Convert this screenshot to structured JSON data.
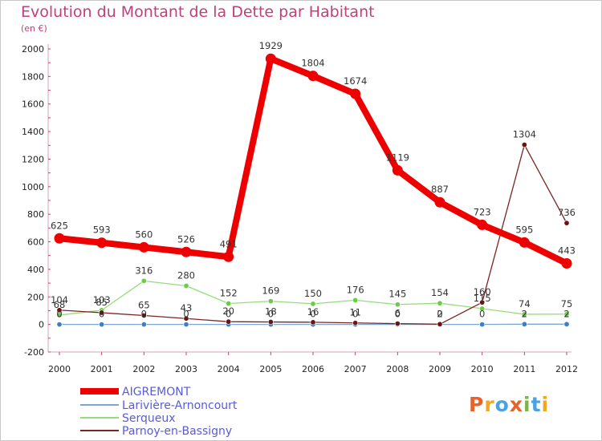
{
  "header": {
    "title": "Evolution du Montant de la Dette par Habitant",
    "subtitle": "(en €)"
  },
  "logo": {
    "text": "Proxiti",
    "colors": [
      "#e8632a",
      "#f2a71c",
      "#4aa3df",
      "#e8632a",
      "#7ab648",
      "#4aa3df",
      "#f2a71c"
    ]
  },
  "chart_data": {
    "type": "line",
    "x": [
      2000,
      2001,
      2002,
      2003,
      2004,
      2005,
      2006,
      2007,
      2008,
      2009,
      2010,
      2011,
      2012
    ],
    "ylim": [
      -200,
      2000
    ],
    "yticks": [
      -200,
      0,
      200,
      400,
      600,
      800,
      1000,
      1200,
      1400,
      1600,
      1800,
      2000
    ],
    "grid": false,
    "legend": "bottom-left",
    "series": [
      {
        "name": "AIGREMONT",
        "color": "#ee0000",
        "values": [
          625,
          593,
          560,
          526,
          491,
          1929,
          1804,
          1674,
          1119,
          887,
          723,
          595,
          443
        ],
        "labels": [
          "625",
          "593",
          "560",
          "526",
          "491",
          "1929",
          "1804",
          "1674",
          "1119",
          "887",
          "723",
          "595",
          "443"
        ]
      },
      {
        "name": "Larivière-Arnoncourt",
        "color": "#7ba7d1",
        "values": [
          0,
          0,
          0,
          0,
          0,
          0,
          0,
          0,
          0,
          0,
          0,
          2,
          2
        ],
        "labels": [
          "0",
          "0",
          "0",
          "0",
          "0",
          "0",
          "0",
          "0",
          "0",
          "0",
          "0",
          "2",
          "2"
        ]
      },
      {
        "name": "Serqueux",
        "color": "#95dd7c",
        "values": [
          68,
          103,
          316,
          280,
          152,
          169,
          150,
          176,
          145,
          154,
          115,
          74,
          75
        ],
        "labels": [
          "68",
          "103",
          "316",
          "280",
          "152",
          "169",
          "150",
          "176",
          "145",
          "154",
          "115",
          "74",
          "75"
        ]
      },
      {
        "name": "Parnoy-en-Bassigny",
        "color": "#7a2424",
        "values": [
          104,
          85,
          65,
          43,
          20,
          18,
          16,
          11,
          6,
          2,
          160,
          1304,
          736
        ],
        "labels": [
          "104",
          "85",
          "65",
          "43",
          "20",
          "18",
          "16",
          "11",
          "6",
          "2",
          "160",
          "1304",
          "736"
        ]
      }
    ]
  }
}
